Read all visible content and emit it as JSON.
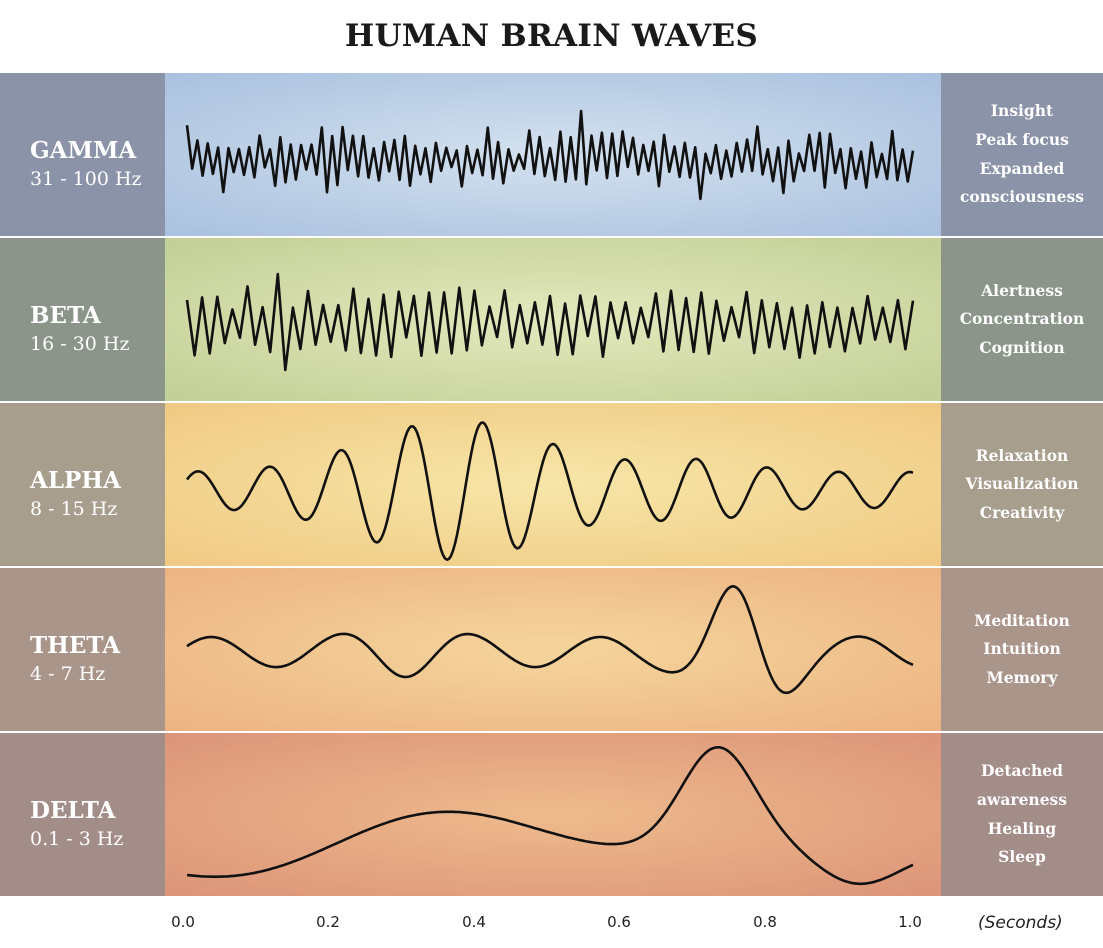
{
  "title": "HUMAN BRAIN WAVES",
  "bands": [
    {
      "name": "GAMMA",
      "frequency": "31 - 100 Hz",
      "effects": [
        "Insight",
        "Peak focus",
        "Expanded",
        "consciousness"
      ],
      "colors": {
        "left": "#8b93a8",
        "right": "#8b93a8",
        "mid_center": "#d4e2ef",
        "mid_edge": "#a9c0df"
      }
    },
    {
      "name": "BETA",
      "frequency": "16 - 30 Hz",
      "effects": [
        "Alertness",
        "Concentration",
        "Cognition"
      ],
      "colors": {
        "left": "#8b958a",
        "right": "#8b958a",
        "mid_center": "#e3e9bd",
        "mid_edge": "#c2cf96"
      }
    },
    {
      "name": "ALPHA",
      "frequency": "8 - 15 Hz",
      "effects": [
        "Relaxation",
        "Visualization",
        "Creativity"
      ],
      "colors": {
        "left": "#a89e8e",
        "right": "#a89e8e",
        "mid_center": "#f7e6a8",
        "mid_edge": "#f0c983"
      }
    },
    {
      "name": "THETA",
      "frequency": "4 - 7 Hz",
      "effects": [
        "Meditation",
        "Intuition",
        "Memory"
      ],
      "colors": {
        "left": "#aa958b",
        "right": "#aa958b",
        "mid_center": "#f5d59c",
        "mid_edge": "#edb382"
      }
    },
    {
      "name": "DELTA",
      "frequency": "0.1 - 3 Hz",
      "effects": [
        "Detached",
        "awareness",
        "Healing",
        "Sleep"
      ],
      "colors": {
        "left": "#a38d88",
        "right": "#a38d88",
        "mid_center": "#eebb8c",
        "mid_edge": "#dc9479"
      }
    }
  ],
  "axis": {
    "ticks": [
      "0.0",
      "0.2",
      "0.4",
      "0.6",
      "0.8",
      "1.0"
    ],
    "unit": "(Seconds)"
  }
}
